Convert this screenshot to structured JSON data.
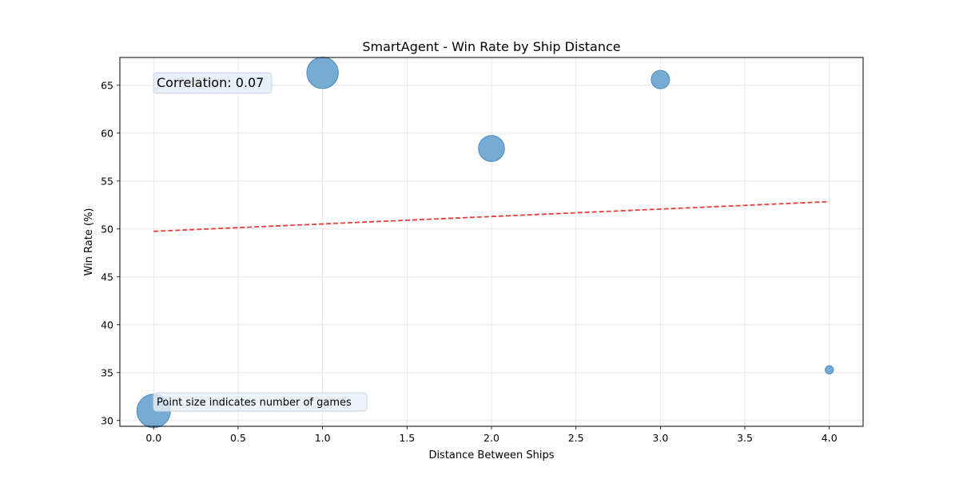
{
  "chart_data": {
    "type": "scatter",
    "title": "SmartAgent - Win Rate by Ship Distance",
    "xlabel": "Distance Between Ships",
    "ylabel": "Win Rate (%)",
    "xlim": [
      -0.2,
      4.2
    ],
    "ylim": [
      29.4,
      67.9
    ],
    "x_ticks": [
      0.0,
      0.5,
      1.0,
      1.5,
      2.0,
      2.5,
      3.0,
      3.5,
      4.0
    ],
    "x_tick_labels": [
      "0.0",
      "0.5",
      "1.0",
      "1.5",
      "2.0",
      "2.5",
      "3.0",
      "3.5",
      "4.0"
    ],
    "y_ticks": [
      30,
      35,
      40,
      45,
      50,
      55,
      60,
      65
    ],
    "y_tick_labels": [
      "30",
      "35",
      "40",
      "45",
      "50",
      "55",
      "60",
      "65"
    ],
    "grid": true,
    "points": [
      {
        "x": 0,
        "y": 31.0,
        "games": 100
      },
      {
        "x": 1,
        "y": 66.3,
        "games": 88
      },
      {
        "x": 2,
        "y": 58.4,
        "games": 60
      },
      {
        "x": 3,
        "y": 65.6,
        "games": 30
      },
      {
        "x": 4,
        "y": 35.3,
        "games": 6
      }
    ],
    "trendline": {
      "x": [
        0,
        4
      ],
      "y": [
        49.75,
        52.85
      ],
      "color": "#e8322f",
      "style": "dashed"
    },
    "point_color": "#6aa4cf",
    "point_edge_color": "#4d8ab8",
    "annotations": [
      {
        "text": "Correlation: 0.07",
        "position": "top-left"
      },
      {
        "text": "Point size indicates number of games",
        "position": "bottom-left"
      }
    ]
  }
}
